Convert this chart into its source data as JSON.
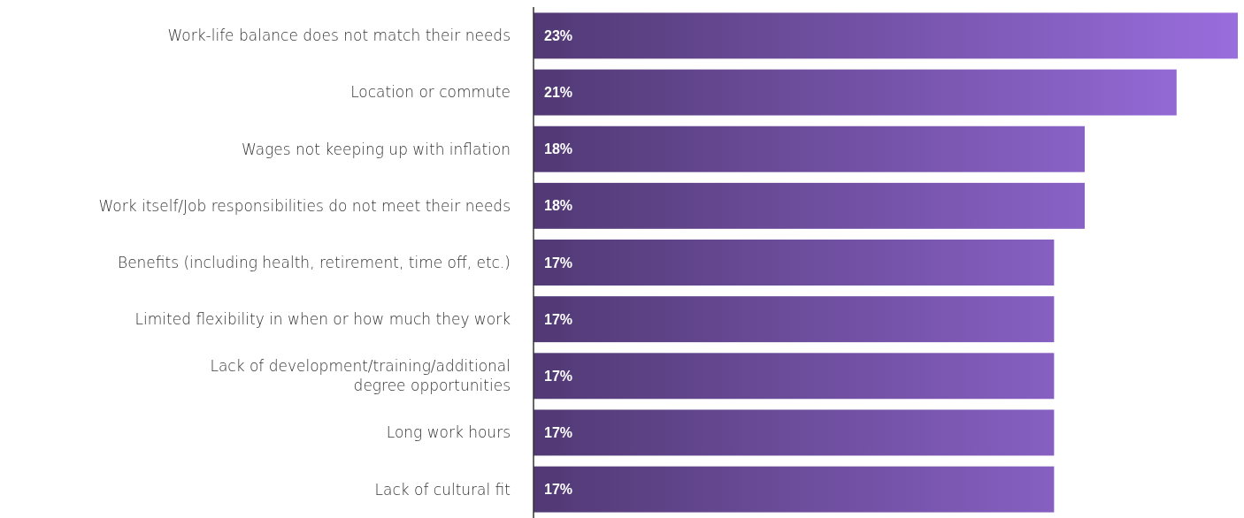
{
  "chart_data": {
    "type": "bar",
    "orientation": "horizontal",
    "categories": [
      "Work-life balance does not match their needs",
      "Location or commute",
      "Wages not keeping up with inflation",
      "Work itself/Job responsibilities do not meet their needs",
      "Benefits (including health, retirement, time off, etc.)",
      "Limited flexibility in when or how much they work",
      "Lack of development/training/additional\ndegree opportunities",
      "Long work hours",
      "Lack of cultural fit"
    ],
    "values": [
      23,
      21,
      18,
      18,
      17,
      17,
      17,
      17,
      17
    ],
    "color": "#6f4fa0",
    "data_labels": true,
    "value_labels": [
      "23%",
      "21%",
      "18%",
      "18%",
      "17%",
      "17%",
      "17%",
      "17%",
      "17%"
    ]
  }
}
